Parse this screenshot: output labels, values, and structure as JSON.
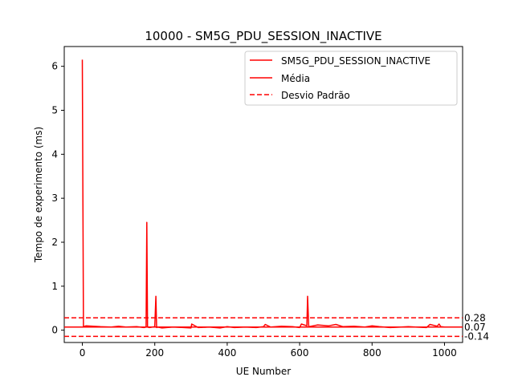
{
  "chart_data": {
    "type": "line",
    "title": "10000 - SM5G_PDU_SESSION_INACTIVE",
    "xlabel": "UE Number",
    "ylabel": "Tempo de experimento (ms)",
    "xlim": [
      -50,
      1050
    ],
    "ylim": [
      -0.28,
      6.45
    ],
    "xticks": [
      0,
      200,
      400,
      600,
      800,
      1000
    ],
    "yticks": [
      0,
      1,
      2,
      3,
      4,
      5,
      6
    ],
    "grid": false,
    "legend_position": "top-right",
    "series": [
      {
        "name": "SM5G_PDU_SESSION_INACTIVE",
        "style": "solid",
        "color": "#ff0000",
        "x": [
          0,
          3,
          10,
          30,
          50,
          80,
          100,
          120,
          150,
          170,
          176,
          178,
          180,
          185,
          200,
          203,
          205,
          208,
          220,
          250,
          280,
          300,
          302,
          320,
          350,
          380,
          400,
          420,
          450,
          480,
          500,
          505,
          520,
          550,
          580,
          600,
          605,
          620,
          622,
          625,
          650,
          680,
          700,
          720,
          750,
          780,
          800,
          820,
          850,
          880,
          900,
          920,
          950,
          960,
          980,
          985,
          990,
          1000
        ],
        "y": [
          6.15,
          0.08,
          0.1,
          0.09,
          0.08,
          0.07,
          0.09,
          0.07,
          0.08,
          0.06,
          0.07,
          2.45,
          0.07,
          0.06,
          0.08,
          0.77,
          0.06,
          0.07,
          0.05,
          0.07,
          0.06,
          0.05,
          0.14,
          0.06,
          0.07,
          0.05,
          0.08,
          0.06,
          0.07,
          0.06,
          0.08,
          0.13,
          0.07,
          0.09,
          0.08,
          0.06,
          0.14,
          0.1,
          0.77,
          0.08,
          0.12,
          0.1,
          0.13,
          0.08,
          0.09,
          0.07,
          0.1,
          0.08,
          0.06,
          0.07,
          0.08,
          0.07,
          0.06,
          0.13,
          0.09,
          0.14,
          0.08,
          0.07
        ]
      },
      {
        "name": "Média",
        "style": "solid",
        "color": "#ff0000",
        "value": 0.07,
        "label": "0.07"
      },
      {
        "name": "Desvio Padrão",
        "style": "dashed",
        "color": "#ff0000",
        "values": [
          0.28,
          -0.14
        ],
        "labels": [
          "0.28",
          "-0.14"
        ]
      }
    ]
  }
}
